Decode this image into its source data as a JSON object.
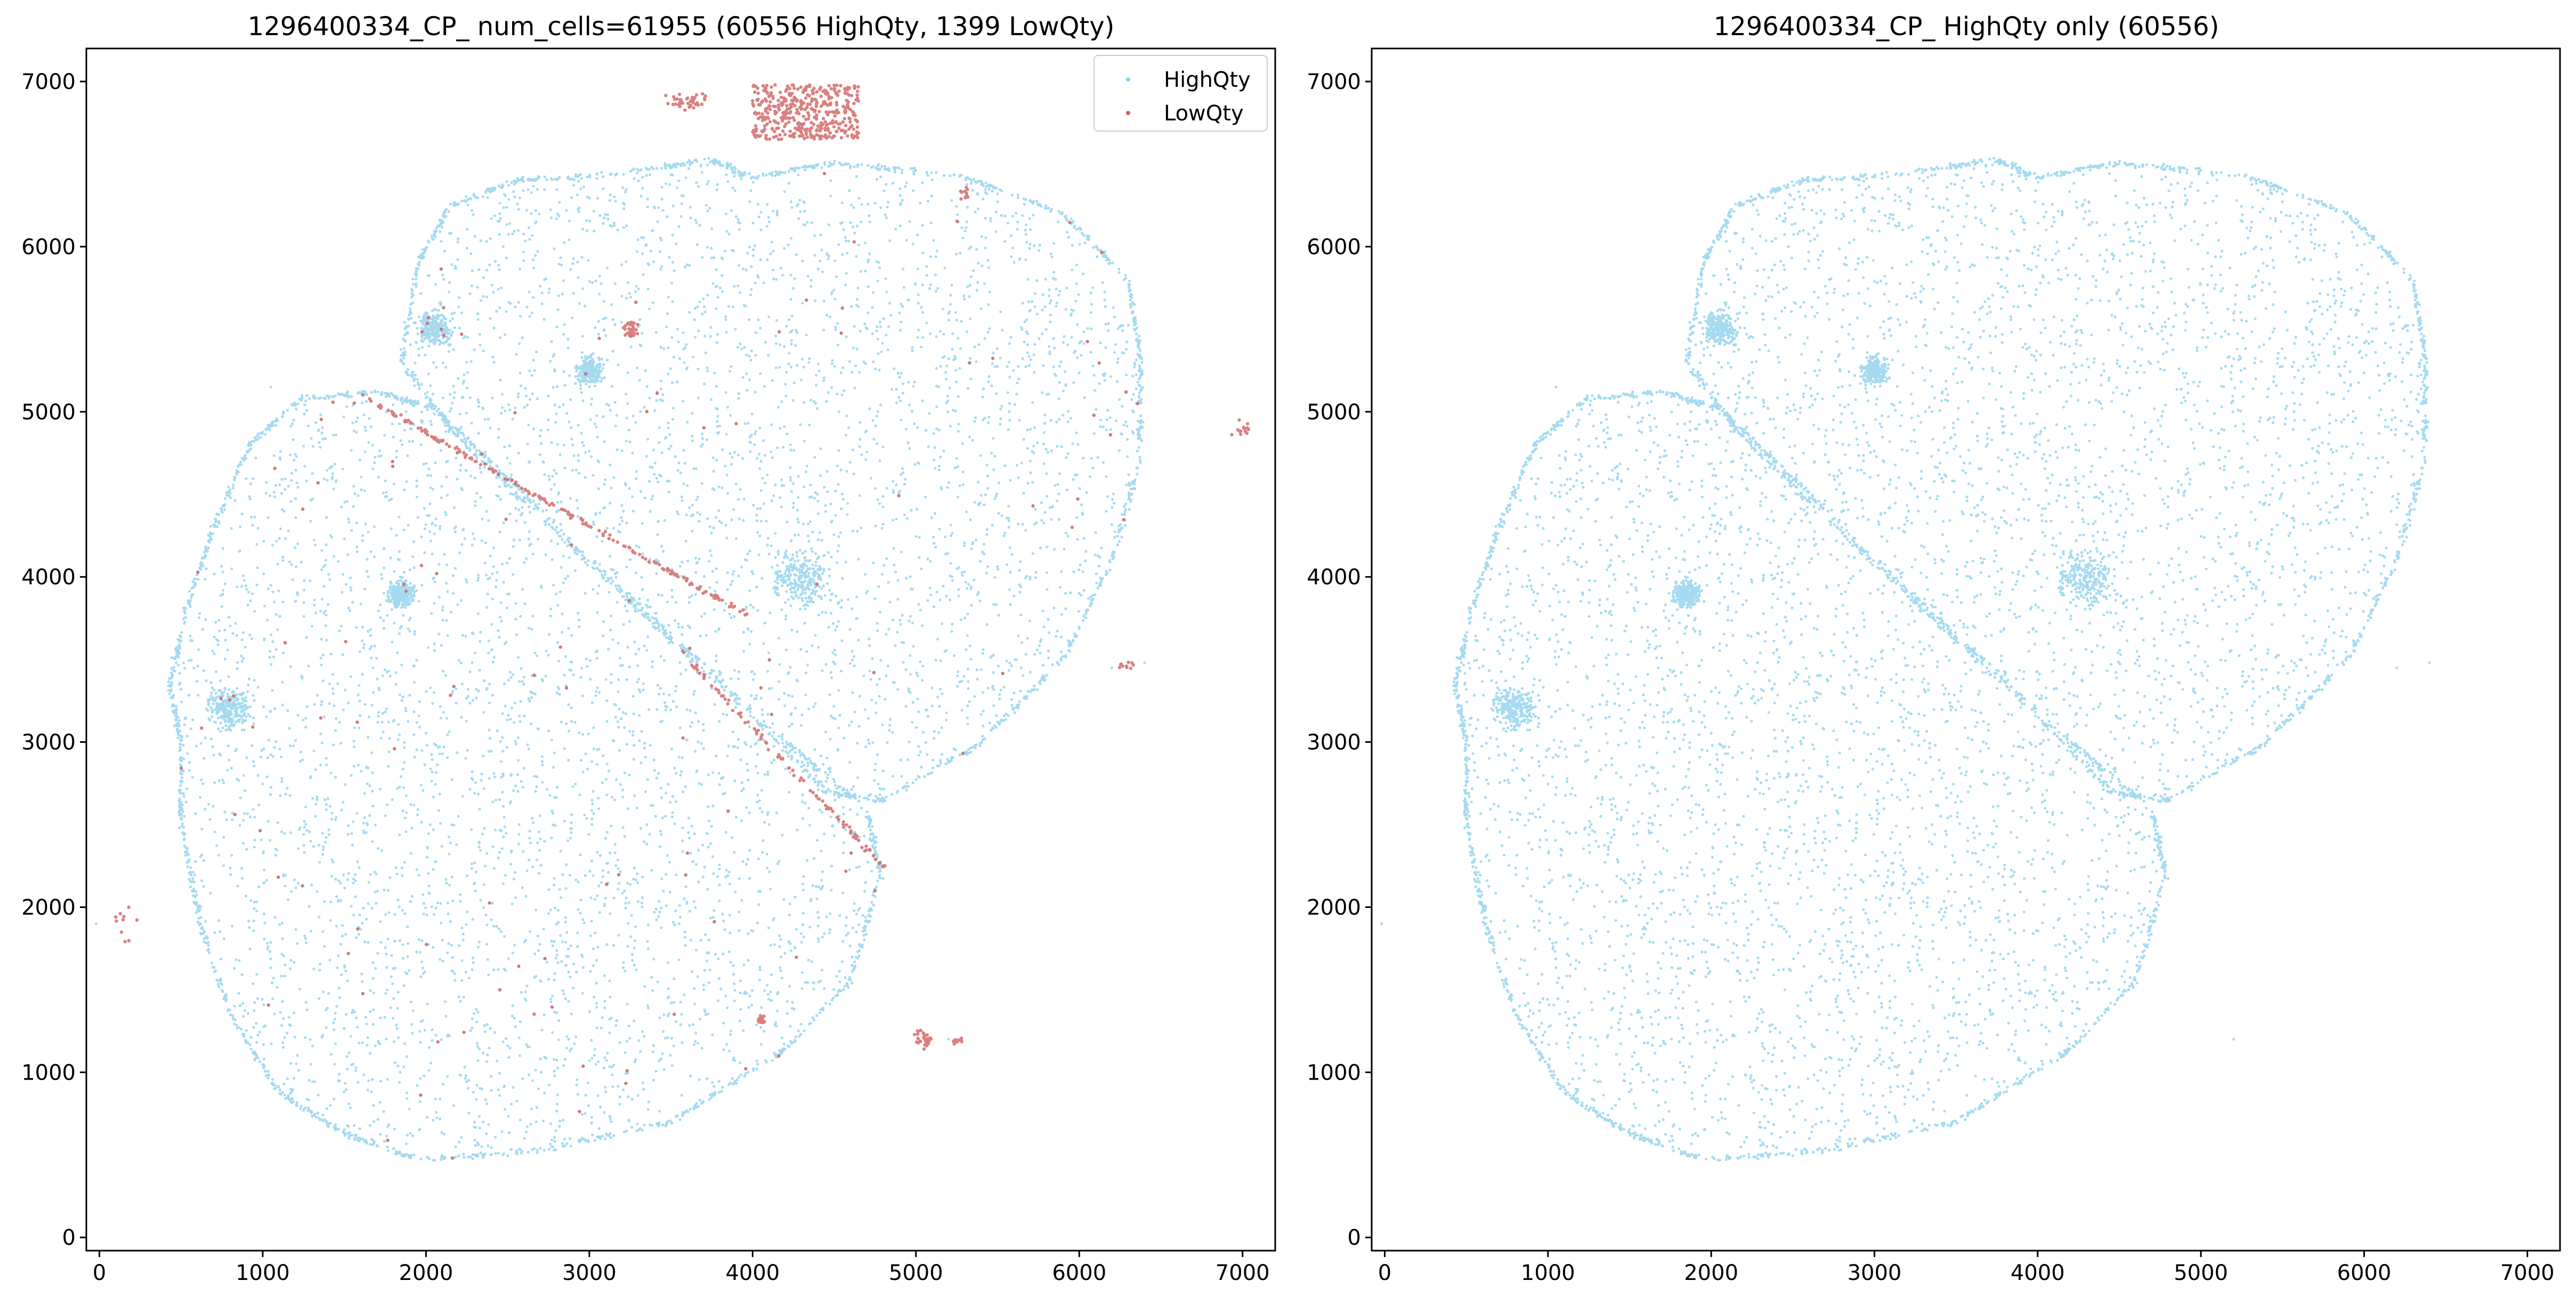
{
  "colors": {
    "high": "#87ceeb",
    "low": "#d16060"
  },
  "legend_labels": [
    "HighQty",
    "LowQty"
  ],
  "chart_data": [
    {
      "type": "scatter",
      "title": "1296400334_CP_ num_cells=61955 (60556 HighQty, 1399 LowQty)",
      "xlabel": "",
      "ylabel": "",
      "xlim": [
        -80,
        7200
      ],
      "ylim": [
        -80,
        7200
      ],
      "xticks": [
        0,
        1000,
        2000,
        3000,
        4000,
        5000,
        6000,
        7000
      ],
      "yticks": [
        0,
        1000,
        2000,
        3000,
        4000,
        5000,
        6000,
        7000
      ],
      "legend": "top-right",
      "series": [
        {
          "name": "HighQty",
          "count": 60556,
          "color": "#87ceeb"
        },
        {
          "name": "LowQty",
          "count": 1399,
          "color": "#d16060"
        }
      ]
    },
    {
      "type": "scatter",
      "title": "1296400334_CP_ HighQty only (60556)",
      "xlabel": "",
      "ylabel": "",
      "xlim": [
        -80,
        7200
      ],
      "ylim": [
        -80,
        7200
      ],
      "xticks": [
        0,
        1000,
        2000,
        3000,
        4000,
        5000,
        6000,
        7000
      ],
      "yticks": [
        0,
        1000,
        2000,
        3000,
        4000,
        5000,
        6000,
        7000
      ],
      "series": [
        {
          "name": "HighQty",
          "count": 60556,
          "color": "#87ceeb"
        }
      ]
    }
  ]
}
